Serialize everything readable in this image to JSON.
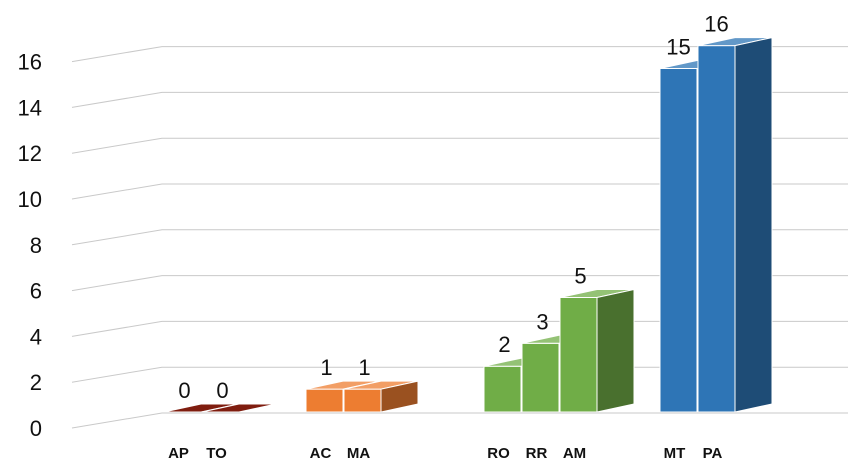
{
  "chart_data": {
    "type": "bar",
    "categories": [
      "AP",
      "TO",
      "AC",
      "MA",
      "RO",
      "RR",
      "AM",
      "MT",
      "PA"
    ],
    "values": [
      0,
      0,
      1,
      1,
      2,
      3,
      5,
      15,
      16
    ],
    "data_labels": [
      "0",
      "0",
      "1",
      "1",
      "2",
      "3",
      "5",
      "15",
      "16"
    ],
    "groups": [
      {
        "categories": [
          "AP",
          "TO"
        ],
        "color": "#7f1d0f"
      },
      {
        "categories": [
          "AC",
          "MA"
        ],
        "color": "#ed7d31"
      },
      {
        "categories": [
          "RO",
          "RR",
          "AM"
        ],
        "color": "#70ad47"
      },
      {
        "categories": [
          "MT",
          "PA"
        ],
        "color": "#2e75b6"
      }
    ],
    "y_ticks": [
      "0",
      "2",
      "4",
      "6",
      "8",
      "10",
      "12",
      "14",
      "16"
    ],
    "ylim": [
      0,
      16
    ],
    "grid": true,
    "style": "3d-column",
    "legend": "none",
    "title": "",
    "xlabel": "",
    "ylabel": ""
  }
}
